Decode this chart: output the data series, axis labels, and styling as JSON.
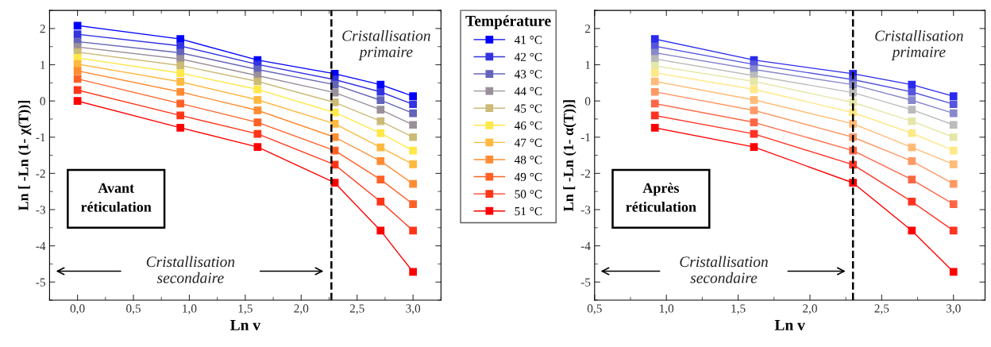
{
  "chart_data": [
    {
      "type": "line",
      "xlabel": "Ln v",
      "ylabel": "Ln [ -Ln (1- χ(T))]",
      "legend_title": "Température",
      "legend": "right",
      "marker": "square",
      "line_style": "solid",
      "grid": false,
      "xlim": [
        -0.25,
        3.25
      ],
      "ylim": [
        -5.5,
        2.5
      ],
      "xticks": [
        {
          "value": 0,
          "label": "0,0"
        },
        {
          "value": 0.5,
          "label": "0,5"
        },
        {
          "value": 1,
          "label": "1,0"
        },
        {
          "value": 1.5,
          "label": "1,5"
        },
        {
          "value": 2,
          "label": "2,0"
        },
        {
          "value": 2.5,
          "label": "2,5"
        },
        {
          "value": 3,
          "label": "3,0"
        }
      ],
      "yticks": [
        -5,
        -4,
        -3,
        -2,
        -1,
        0,
        1,
        2
      ],
      "ref_lines": [
        {
          "axis": "x",
          "value": 2.27,
          "label": null,
          "color": "#000000",
          "line_style": "dashed"
        }
      ],
      "annotations": [
        "Cristallisation\nprimaire",
        "Cristallisation\nsecondaire",
        "Avant\nréticulation"
      ],
      "x": [
        0,
        0.92,
        1.61,
        2.3,
        2.71,
        3.0
      ],
      "series": [
        {
          "name": "41 °C",
          "color": "#0000ff",
          "values": [
            2.08,
            1.71,
            1.13,
            0.75,
            0.45,
            0.13
          ]
        },
        {
          "name": "42 °C",
          "color": "#3333e0",
          "values": [
            1.84,
            1.52,
            1.01,
            0.59,
            0.25,
            -0.09
          ]
        },
        {
          "name": "43 °C",
          "color": "#6464bb",
          "values": [
            1.64,
            1.33,
            0.87,
            0.45,
            0.02,
            -0.34
          ]
        },
        {
          "name": "44 °C",
          "color": "#9a909a",
          "values": [
            1.49,
            1.16,
            0.7,
            0.23,
            -0.24,
            -0.66
          ]
        },
        {
          "name": "45 °C",
          "color": "#cbbb77",
          "values": [
            1.35,
            0.98,
            0.54,
            -0.04,
            -0.56,
            -1.0
          ]
        },
        {
          "name": "46 °C",
          "color": "#ffe84a",
          "values": [
            1.19,
            0.77,
            0.32,
            -0.32,
            -0.89,
            -1.37
          ]
        },
        {
          "name": "47 °C",
          "color": "#ffb840",
          "values": [
            1.02,
            0.53,
            0.03,
            -0.63,
            -1.28,
            -1.75
          ]
        },
        {
          "name": "48 °C",
          "color": "#ff8c33",
          "values": [
            0.83,
            0.25,
            -0.26,
            -1.0,
            -1.66,
            -2.29
          ]
        },
        {
          "name": "49 °C",
          "color": "#ff6026",
          "values": [
            0.61,
            -0.07,
            -0.59,
            -1.37,
            -2.17,
            -2.85
          ]
        },
        {
          "name": "50 °C",
          "color": "#ff3518",
          "values": [
            0.3,
            -0.4,
            -0.91,
            -1.76,
            -2.78,
            -3.58
          ]
        },
        {
          "name": "51 °C",
          "color": "#ff0000",
          "values": [
            0.0,
            -0.74,
            -1.27,
            -2.26,
            -3.58,
            -4.72
          ]
        }
      ]
    },
    {
      "type": "line",
      "xlabel": "Ln v",
      "ylabel": "Ln [ -Ln (1- α(T))]",
      "marker": "square",
      "line_style": "solid",
      "grid": false,
      "xlim": [
        0.5,
        3.22
      ],
      "ylim": [
        -5.5,
        2.5
      ],
      "xticks": [
        {
          "value": 0.5,
          "label": "0,5"
        },
        {
          "value": 1,
          "label": "1,0"
        },
        {
          "value": 1.5,
          "label": "1,5"
        },
        {
          "value": 2,
          "label": "2,0"
        },
        {
          "value": 2.5,
          "label": "2,5"
        },
        {
          "value": 3,
          "label": "3,0"
        }
      ],
      "yticks": [
        -5,
        -4,
        -3,
        -2,
        -1,
        0,
        1,
        2
      ],
      "ref_lines": [
        {
          "axis": "x",
          "value": 2.3,
          "label": null,
          "color": "#000000",
          "line_style": "dashed"
        }
      ],
      "annotations": [
        "Cristallisation\nprimaire",
        "Cristallisation\nsecondaire",
        "Après\nréticulation"
      ],
      "x": [
        0.92,
        1.61,
        2.3,
        2.71,
        3.0
      ],
      "series": [
        {
          "color": "#2a2aee",
          "values": [
            1.71,
            1.13,
            0.75,
            0.45,
            0.13
          ]
        },
        {
          "color": "#5555dd",
          "values": [
            1.51,
            1.01,
            0.59,
            0.25,
            -0.09
          ]
        },
        {
          "color": "#8888cc",
          "values": [
            1.33,
            0.87,
            0.45,
            0.02,
            -0.34
          ]
        },
        {
          "color": "#bbbbbb",
          "values": [
            1.16,
            0.7,
            0.23,
            -0.24,
            -0.66
          ]
        },
        {
          "color": "#e6e6a8",
          "values": [
            0.97,
            0.54,
            -0.04,
            -0.56,
            -1.0
          ]
        },
        {
          "color": "#ffe888",
          "values": [
            0.78,
            0.32,
            -0.32,
            -0.89,
            -1.37
          ]
        },
        {
          "color": "#ffbb77",
          "values": [
            0.54,
            0.03,
            -0.63,
            -1.28,
            -1.75
          ]
        },
        {
          "color": "#ff9966",
          "values": [
            0.25,
            -0.26,
            -1.0,
            -1.66,
            -2.29
          ]
        },
        {
          "color": "#ff6644",
          "values": [
            -0.07,
            -0.59,
            -1.37,
            -2.17,
            -2.85
          ]
        },
        {
          "color": "#ff3322",
          "values": [
            -0.4,
            -0.91,
            -1.76,
            -2.78,
            -3.58
          ]
        },
        {
          "color": "#ff0000",
          "values": [
            -0.74,
            -1.27,
            -2.26,
            -3.58,
            -4.72
          ]
        }
      ]
    }
  ]
}
